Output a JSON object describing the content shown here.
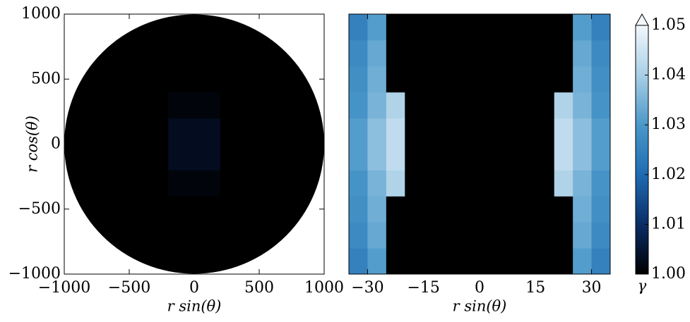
{
  "chart_data": [
    {
      "type": "heatmap",
      "xlabel": "r sin(θ)",
      "ylabel": "r cos(θ)",
      "domain": "disk",
      "xlim": [
        -1000,
        1000
      ],
      "ylim": [
        -1000,
        1000
      ],
      "xticks": [
        {
          "value": -1000,
          "label": "−1000"
        },
        {
          "value": -500,
          "label": "−500"
        },
        0,
        500,
        1000
      ],
      "yticks": [
        {
          "value": -1000,
          "label": "−1000"
        },
        {
          "value": -500,
          "label": "−500"
        },
        0,
        500,
        1000
      ],
      "x": [
        -900,
        -700,
        -500,
        -300,
        -100,
        100,
        300,
        500,
        700,
        900
      ],
      "y": [
        -900,
        -700,
        -500,
        -300,
        -100,
        100,
        300,
        500,
        700,
        900
      ],
      "z": [
        [
          1,
          1,
          1,
          1,
          1,
          1,
          1,
          1,
          1,
          1
        ],
        [
          1,
          1,
          1,
          1,
          1,
          1,
          1,
          1,
          1,
          1
        ],
        [
          1,
          1,
          1,
          1,
          1,
          1,
          1,
          1,
          1,
          1
        ],
        [
          1,
          1,
          1,
          1,
          1.001,
          1.001,
          1,
          1,
          1,
          1
        ],
        [
          1,
          1,
          1,
          1,
          1.003,
          1.003,
          1,
          1,
          1,
          1
        ],
        [
          1,
          1,
          1,
          1,
          1.003,
          1.003,
          1,
          1,
          1,
          1
        ],
        [
          1,
          1,
          1,
          1,
          1.001,
          1.001,
          1,
          1,
          1,
          1
        ],
        [
          1,
          1,
          1,
          1,
          1,
          1,
          1,
          1,
          1,
          1
        ],
        [
          1,
          1,
          1,
          1,
          1,
          1,
          1,
          1,
          1,
          1
        ],
        [
          1,
          1,
          1,
          1,
          1,
          1,
          1,
          1,
          1,
          1
        ]
      ]
    },
    {
      "type": "heatmap",
      "xlabel": "r sin(θ)",
      "xlim": [
        -35,
        35
      ],
      "ylim": [
        -1000,
        1000
      ],
      "xticks": [
        {
          "value": -30,
          "label": "−30"
        },
        {
          "value": -15,
          "label": "−15"
        },
        0,
        15,
        30
      ],
      "x": [
        -32.5,
        -27.5,
        -22.5,
        -17.5,
        -12.5,
        -7.5,
        -2.5,
        2.5,
        7.5,
        12.5,
        17.5,
        22.5,
        27.5,
        32.5
      ],
      "y": [
        -900,
        -700,
        -500,
        -300,
        -100,
        100,
        300,
        500,
        700,
        900
      ],
      "z": [
        [
          1.025,
          1.031,
          1,
          1,
          1,
          1,
          1,
          1,
          1,
          1,
          1,
          1,
          1.031,
          1.025
        ],
        [
          1.027,
          1.033,
          1,
          1,
          1,
          1,
          1,
          1,
          1,
          1,
          1,
          1,
          1.033,
          1.027
        ],
        [
          1.028,
          1.034,
          1,
          1,
          1,
          1,
          1,
          1,
          1,
          1,
          1,
          1,
          1.034,
          1.028
        ],
        [
          1.029,
          1.035,
          1.041,
          1,
          1,
          1,
          1,
          1,
          1,
          1,
          1,
          1.041,
          1.035,
          1.029
        ],
        [
          1.031,
          1.037,
          1.043,
          1,
          1,
          1,
          1,
          1,
          1,
          1,
          1,
          1.043,
          1.037,
          1.031
        ],
        [
          1.031,
          1.037,
          1.043,
          1,
          1,
          1,
          1,
          1,
          1,
          1,
          1,
          1.043,
          1.037,
          1.031
        ],
        [
          1.029,
          1.035,
          1.041,
          1,
          1,
          1,
          1,
          1,
          1,
          1,
          1,
          1.041,
          1.035,
          1.029
        ],
        [
          1.028,
          1.034,
          1,
          1,
          1,
          1,
          1,
          1,
          1,
          1,
          1,
          1,
          1.034,
          1.028
        ],
        [
          1.027,
          1.033,
          1,
          1,
          1,
          1,
          1,
          1,
          1,
          1,
          1,
          1,
          1.033,
          1.027
        ],
        [
          1.025,
          1.031,
          1,
          1,
          1,
          1,
          1,
          1,
          1,
          1,
          1,
          1,
          1.031,
          1.025
        ]
      ]
    },
    {
      "type": "colorbar",
      "label": "γ",
      "clim": [
        1,
        1.05
      ],
      "extend": "max",
      "ticks": [
        {
          "value": 1,
          "label": "1.00"
        },
        1.01,
        1.02,
        1.03,
        1.04,
        1.05
      ],
      "colormap": [
        "#000000",
        "#0a2d66",
        "#1f6bb3",
        "#4a98c9",
        "#a9cfe6",
        "#f2f7fd"
      ]
    }
  ]
}
